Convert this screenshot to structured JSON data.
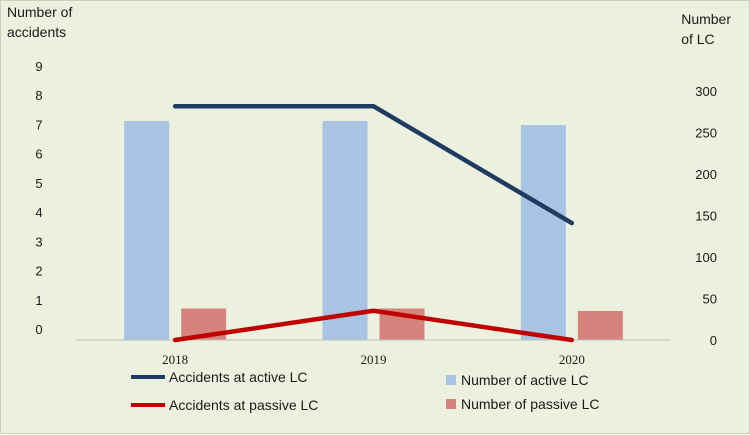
{
  "chart_data": {
    "type": "bar",
    "categories": [
      "2018",
      "2019",
      "2020"
    ],
    "left_axis": {
      "label_line1": "Number of",
      "label_line2": "accidents",
      "ylim": [
        0,
        9
      ],
      "ticks": [
        0,
        1,
        2,
        3,
        4,
        5,
        6,
        7,
        8,
        9
      ]
    },
    "right_axis": {
      "label_line1": "Number",
      "label_line2": "of LC",
      "ylim": [
        0,
        300
      ],
      "ticks": [
        0,
        50,
        100,
        150,
        200,
        250,
        300
      ]
    },
    "series": [
      {
        "name": "Number of active LC",
        "kind": "bar",
        "axis": "right",
        "color": "#a8c4e2",
        "values": [
          264,
          264,
          259
        ]
      },
      {
        "name": "Number of passive LC",
        "kind": "bar",
        "axis": "right",
        "color": "#d6837d",
        "values": [
          38,
          38,
          35
        ]
      },
      {
        "name": "Accidents at active LC",
        "kind": "line",
        "axis": "left",
        "color": "#1f3b61",
        "values": [
          8,
          8,
          4
        ]
      },
      {
        "name": "Accidents at passive LC",
        "kind": "line",
        "axis": "left",
        "color": "#c00000",
        "values": [
          0,
          1,
          0
        ]
      }
    ],
    "grid": false,
    "legend_position": "bottom"
  }
}
